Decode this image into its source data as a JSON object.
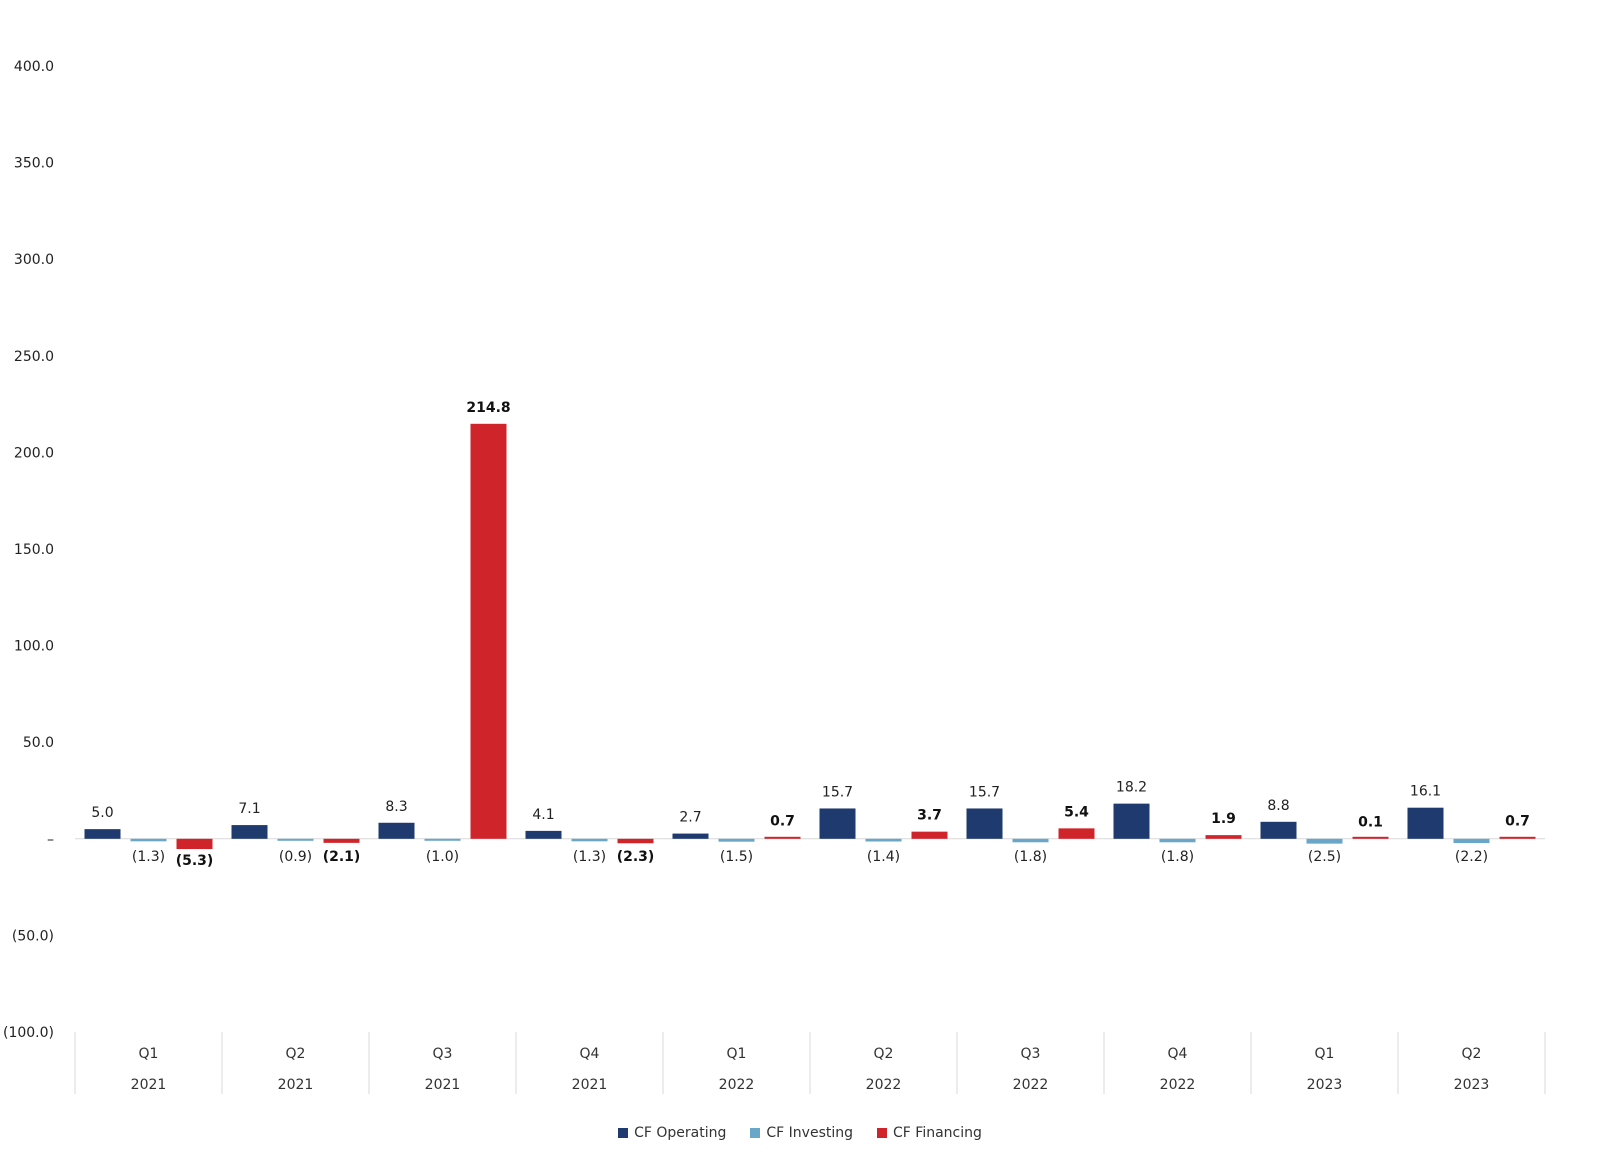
{
  "chart_data": {
    "type": "bar",
    "categories": [
      {
        "quarter": "Q1",
        "year": "2021"
      },
      {
        "quarter": "Q2",
        "year": "2021"
      },
      {
        "quarter": "Q3",
        "year": "2021"
      },
      {
        "quarter": "Q4",
        "year": "2021"
      },
      {
        "quarter": "Q1",
        "year": "2022"
      },
      {
        "quarter": "Q2",
        "year": "2022"
      },
      {
        "quarter": "Q3",
        "year": "2022"
      },
      {
        "quarter": "Q4",
        "year": "2022"
      },
      {
        "quarter": "Q1",
        "year": "2023"
      },
      {
        "quarter": "Q2",
        "year": "2023"
      }
    ],
    "series": [
      {
        "name": "CF Operating",
        "color": "#1f3a6e",
        "values": [
          5.0,
          7.1,
          8.3,
          4.1,
          2.7,
          15.7,
          15.7,
          18.2,
          8.8,
          16.1
        ],
        "labels": [
          "5.0",
          "7.1",
          "8.3",
          "4.1",
          "2.7",
          "15.7",
          "15.7",
          "18.2",
          "8.8",
          "16.1"
        ],
        "bold_labels": false
      },
      {
        "name": "CF Investing",
        "color": "#6aa6c8",
        "values": [
          -1.3,
          -0.9,
          -1.0,
          -1.3,
          -1.5,
          -1.4,
          -1.8,
          -1.8,
          -2.5,
          -2.2
        ],
        "labels": [
          "(1.3)",
          "(0.9)",
          "(1.0)",
          "(1.3)",
          "(1.5)",
          "(1.4)",
          "(1.8)",
          "(1.8)",
          "(2.5)",
          "(2.2)"
        ],
        "bold_labels": false
      },
      {
        "name": "CF Financing",
        "color": "#d0242b",
        "values": [
          -5.3,
          -2.1,
          214.8,
          -2.3,
          0.7,
          3.7,
          5.4,
          1.9,
          0.1,
          0.7
        ],
        "labels": [
          "(5.3)",
          "(2.1)",
          "214.8",
          "(2.3)",
          "0.7",
          "3.7",
          "5.4",
          "1.9",
          "0.1",
          "0.7"
        ],
        "bold_labels": true
      }
    ],
    "y_ticks": [
      400,
      350,
      300,
      250,
      200,
      150,
      100,
      50,
      0,
      -50,
      -100
    ],
    "y_tick_labels": [
      "400.0",
      "350.0",
      "300.0",
      "250.0",
      "200.0",
      "150.0",
      "100.0",
      "50.0",
      "–",
      "(50.0)",
      "(100.0)"
    ],
    "ylim": [
      -100,
      400
    ],
    "grid": false,
    "legend_position": "bottom-center"
  }
}
